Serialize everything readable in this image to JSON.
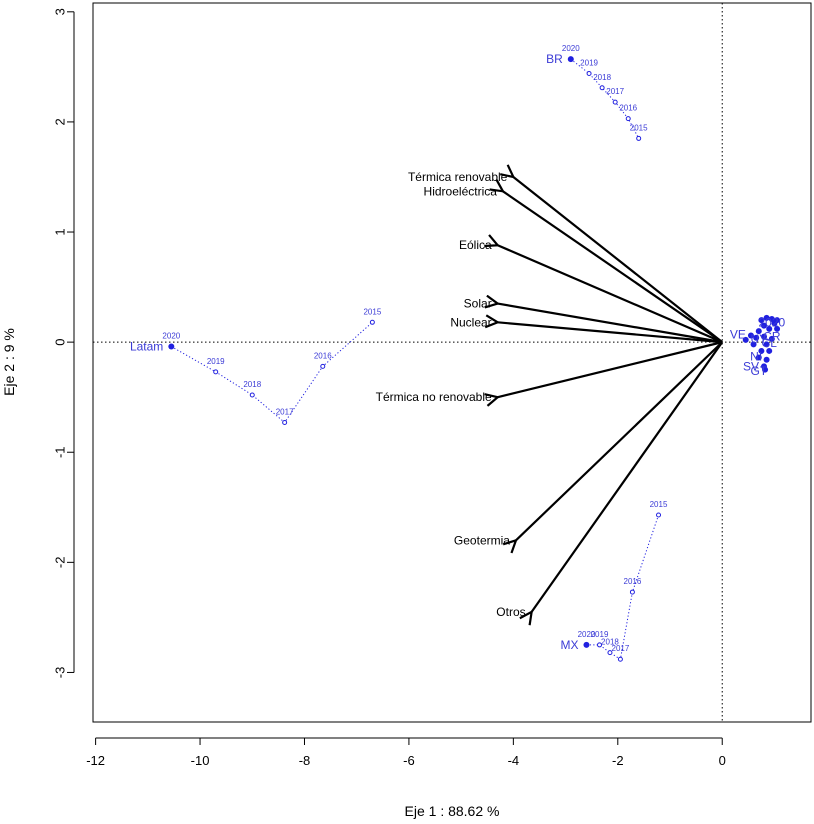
{
  "chart_data": {
    "type": "scatter",
    "subtype": "biplot",
    "xlabel": "Eje 1 :  88.62 %",
    "ylabel": "Eje 2 :  9 %",
    "xlim": [
      -12.05,
      1.7
    ],
    "ylim": [
      -3.45,
      3.08
    ],
    "xticks": [
      -12,
      -10,
      -8,
      -6,
      -4,
      -2,
      0
    ],
    "yticks": [
      -3,
      -2,
      -1,
      0,
      1,
      2,
      3
    ],
    "reference_lines": {
      "x": 0,
      "y": 0,
      "style": "dotted"
    },
    "point_color": "#2020e0",
    "arrow_color": "#000000",
    "variables": [
      {
        "name": "Térmica renovable",
        "x": -4.0,
        "y": 1.5
      },
      {
        "name": "Hidroeléctrica",
        "x": -4.2,
        "y": 1.37
      },
      {
        "name": "Eólica",
        "x": -4.3,
        "y": 0.88
      },
      {
        "name": "Solar",
        "x": -4.3,
        "y": 0.35
      },
      {
        "name": "Nuclear",
        "x": -4.3,
        "y": 0.18
      },
      {
        "name": "Térmica no renovable",
        "x": -4.3,
        "y": -0.5
      },
      {
        "name": "Geotermia",
        "x": -3.95,
        "y": -1.8
      },
      {
        "name": "Otros",
        "x": -3.65,
        "y": -2.45
      }
    ],
    "trajectories": [
      {
        "name": "BR",
        "points": [
          {
            "year": "2020",
            "x": -2.9,
            "y": 2.57
          },
          {
            "year": "2019",
            "x": -2.55,
            "y": 2.44
          },
          {
            "year": "2018",
            "x": -2.3,
            "y": 2.31
          },
          {
            "year": "2017",
            "x": -2.05,
            "y": 2.18
          },
          {
            "year": "2016",
            "x": -1.8,
            "y": 2.03
          },
          {
            "year": "2015",
            "x": -1.6,
            "y": 1.85
          }
        ]
      },
      {
        "name": "Latam",
        "points": [
          {
            "year": "2020",
            "x": -10.55,
            "y": -0.04
          },
          {
            "year": "2019",
            "x": -9.7,
            "y": -0.27
          },
          {
            "year": "2018",
            "x": -9.0,
            "y": -0.48
          },
          {
            "year": "2017",
            "x": -8.38,
            "y": -0.73
          },
          {
            "year": "2016",
            "x": -7.65,
            "y": -0.22
          },
          {
            "year": "2015",
            "x": -6.7,
            "y": 0.18
          }
        ]
      },
      {
        "name": "MX",
        "points": [
          {
            "year": "2020",
            "x": -2.6,
            "y": -2.75
          },
          {
            "year": "2019",
            "x": -2.35,
            "y": -2.75
          },
          {
            "year": "2018",
            "x": -2.15,
            "y": -2.82
          },
          {
            "year": "2017",
            "x": -1.95,
            "y": -2.88
          },
          {
            "year": "2016",
            "x": -1.72,
            "y": -2.27
          },
          {
            "year": "2015",
            "x": -1.22,
            "y": -1.57
          }
        ]
      }
    ],
    "cluster_labels": [
      {
        "text": "2020",
        "x": 0.95,
        "y": 0.18
      },
      {
        "text": "VE",
        "x": 0.3,
        "y": 0.07
      },
      {
        "text": "CR",
        "x": 0.95,
        "y": 0.05
      },
      {
        "text": "UY",
        "x": 0.7,
        "y": 0.03
      },
      {
        "text": "CL",
        "x": 0.9,
        "y": -0.01
      },
      {
        "text": "NI",
        "x": 0.65,
        "y": -0.13
      },
      {
        "text": "SV",
        "x": 0.55,
        "y": -0.22
      },
      {
        "text": "GT",
        "x": 0.7,
        "y": -0.26
      }
    ]
  }
}
